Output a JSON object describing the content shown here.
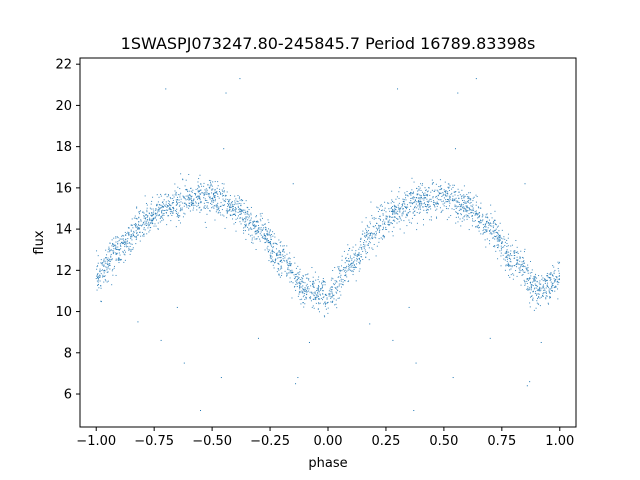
{
  "chart_data": {
    "type": "scatter",
    "title": "1SWASPJ073247.80-245845.7 Period 16789.83398s",
    "xlabel": "phase",
    "ylabel": "flux",
    "xlim": [
      -1.07,
      1.07
    ],
    "ylim": [
      4.4,
      22.3
    ],
    "xticks": [
      -1.0,
      -0.75,
      -0.5,
      -0.25,
      0.0,
      0.25,
      0.5,
      0.75,
      1.0
    ],
    "xtick_labels": [
      "−1.00",
      "−0.75",
      "−0.50",
      "−0.25",
      "0.00",
      "0.25",
      "0.50",
      "0.75",
      "1.00"
    ],
    "yticks": [
      6,
      8,
      10,
      12,
      14,
      16,
      18,
      20,
      22
    ],
    "ytick_labels": [
      "6",
      "8",
      "10",
      "12",
      "14",
      "16",
      "18",
      "20",
      "22"
    ],
    "grid": false,
    "legend": "none",
    "marker_color": "#1f77b4",
    "series": [
      {
        "description": "dense folded light curve, ~3000 points; flux follows a double-humped curve with minima ~10.8 near phase 0 and ±1 and maxima ~15.5 near phase ±0.55, scatter ~0.4",
        "curve_phase": [
          -1.0,
          -0.9,
          -0.8,
          -0.7,
          -0.6,
          -0.5,
          -0.4,
          -0.3,
          -0.2,
          -0.1,
          0.0,
          0.1,
          0.2,
          0.3,
          0.4,
          0.5,
          0.6,
          0.7,
          0.8,
          0.9,
          1.0
        ],
        "curve_flux": [
          11.8,
          13.0,
          14.3,
          15.0,
          15.5,
          15.5,
          14.9,
          14.0,
          12.5,
          11.1,
          10.8,
          12.3,
          13.9,
          15.0,
          15.4,
          15.5,
          15.1,
          14.0,
          12.5,
          11.1,
          11.5
        ],
        "outliers": [
          {
            "x": -0.7,
            "y": 20.8
          },
          {
            "x": -0.44,
            "y": 20.6
          },
          {
            "x": -0.38,
            "y": 21.3
          },
          {
            "x": 0.3,
            "y": 20.8
          },
          {
            "x": 0.56,
            "y": 20.6
          },
          {
            "x": 0.64,
            "y": 21.3
          },
          {
            "x": -0.45,
            "y": 17.9
          },
          {
            "x": 0.55,
            "y": 17.9
          },
          {
            "x": -0.15,
            "y": 16.2
          },
          {
            "x": 0.85,
            "y": 16.2
          },
          {
            "x": -0.13,
            "y": 6.8
          },
          {
            "x": -0.14,
            "y": 6.5
          },
          {
            "x": 0.87,
            "y": 6.6
          },
          {
            "x": 0.86,
            "y": 6.4
          },
          {
            "x": -0.62,
            "y": 7.5
          },
          {
            "x": 0.38,
            "y": 7.5
          },
          {
            "x": -0.46,
            "y": 6.8
          },
          {
            "x": 0.54,
            "y": 6.8
          },
          {
            "x": -0.08,
            "y": 8.5
          },
          {
            "x": 0.92,
            "y": 8.5
          },
          {
            "x": -0.55,
            "y": 5.2
          },
          {
            "x": 0.37,
            "y": 5.2
          },
          {
            "x": -0.82,
            "y": 9.5
          },
          {
            "x": 0.18,
            "y": 9.4
          },
          {
            "x": 0.28,
            "y": 8.6
          },
          {
            "x": -0.72,
            "y": 8.6
          },
          {
            "x": 0.7,
            "y": 8.7
          },
          {
            "x": -0.3,
            "y": 8.7
          },
          {
            "x": -0.65,
            "y": 10.2
          },
          {
            "x": 0.35,
            "y": 10.2
          },
          {
            "x": -0.98,
            "y": 10.5
          },
          {
            "x": 0.02,
            "y": 10.5
          }
        ]
      }
    ]
  }
}
